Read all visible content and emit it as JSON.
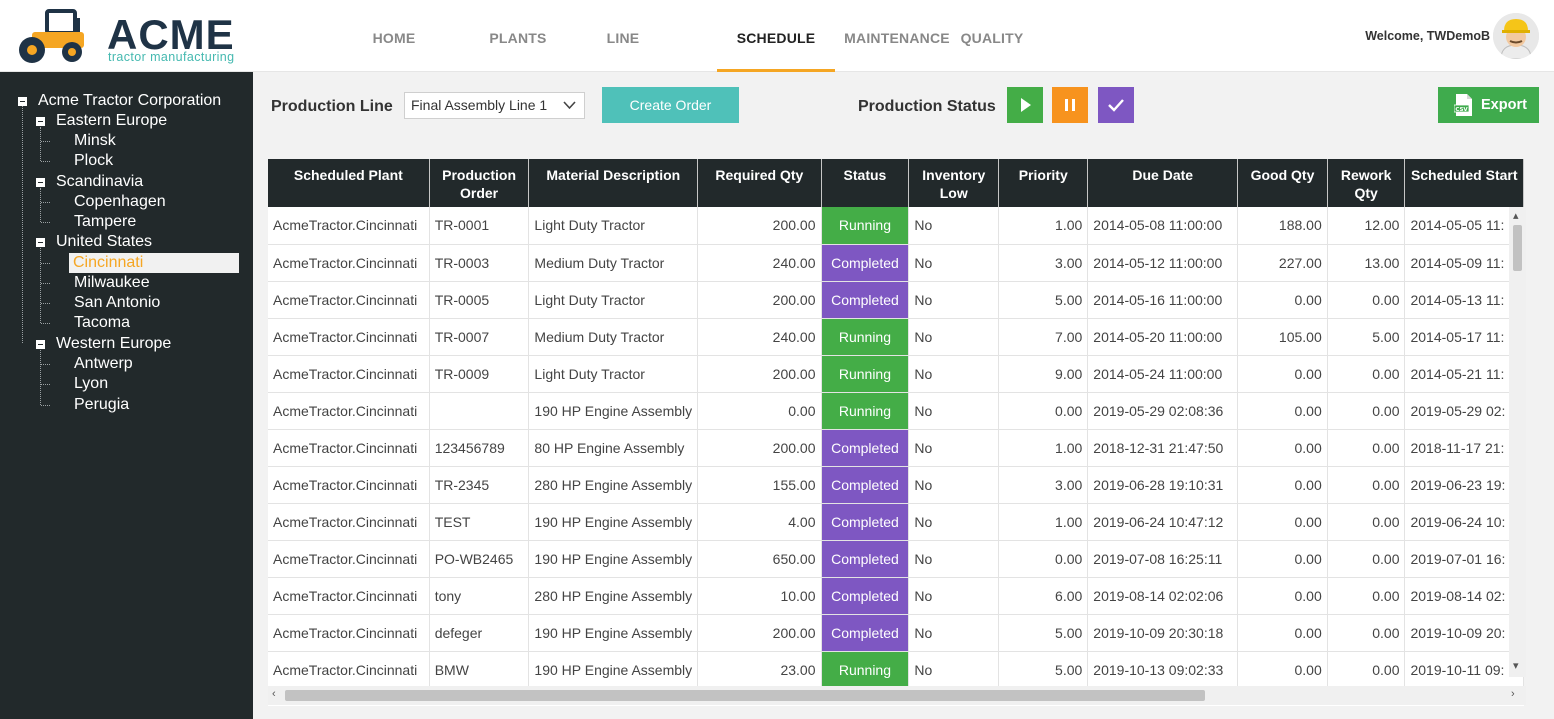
{
  "brand": {
    "name": "ACME",
    "subtitle": "tractor manufacturing",
    "accent": "#f5a623",
    "teal": "#45b9b0",
    "navy": "#1f3346"
  },
  "nav": {
    "items": [
      "HOME",
      "PLANTS",
      "LINE",
      "SCHEDULE",
      "MAINTENANCE",
      "QUALITY"
    ],
    "active": "SCHEDULE"
  },
  "user": {
    "welcome": "Welcome, TWDemoB"
  },
  "tree": {
    "root": "Acme Tractor Corporation",
    "regions": [
      {
        "name": "Eastern Europe",
        "plants": [
          "Minsk",
          "Plock"
        ]
      },
      {
        "name": "Scandinavia",
        "plants": [
          "Copenhagen",
          "Tampere"
        ]
      },
      {
        "name": "United States",
        "plants": [
          "Cincinnati",
          "Milwaukee",
          "San Antonio",
          "Tacoma"
        ]
      },
      {
        "name": "Western Europe",
        "plants": [
          "Antwerp",
          "Lyon",
          "Perugia"
        ]
      }
    ],
    "selected": "Cincinnati"
  },
  "toolbar": {
    "production_line_label": "Production Line",
    "production_line_value": "Final Assembly Line 1",
    "create_order_label": "Create Order",
    "production_status_label": "Production Status",
    "export_label": "Export",
    "status_colors": {
      "play": "#44ad47",
      "pause": "#f7931e",
      "done": "#7e57c2"
    }
  },
  "table": {
    "columns": [
      "Scheduled Plant",
      "Production Order",
      "Material Description",
      "Required Qty",
      "Status",
      "Inventory Low",
      "Priority",
      "Due Date",
      "Good Qty",
      "Rework Qty",
      "Scheduled Start"
    ],
    "rows": [
      [
        "AcmeTractor.Cincinnati",
        "TR-0001",
        "Light Duty Tractor",
        "200.00",
        "Running",
        "No",
        "1.00",
        "2014-05-08 11:00:00",
        "188.00",
        "12.00",
        "2014-05-05 11:"
      ],
      [
        "AcmeTractor.Cincinnati",
        "TR-0003",
        "Medium Duty Tractor",
        "240.00",
        "Completed",
        "No",
        "3.00",
        "2014-05-12 11:00:00",
        "227.00",
        "13.00",
        "2014-05-09 11:"
      ],
      [
        "AcmeTractor.Cincinnati",
        "TR-0005",
        "Light Duty Tractor",
        "200.00",
        "Completed",
        "No",
        "5.00",
        "2014-05-16 11:00:00",
        "0.00",
        "0.00",
        "2014-05-13 11:"
      ],
      [
        "AcmeTractor.Cincinnati",
        "TR-0007",
        "Medium Duty Tractor",
        "240.00",
        "Running",
        "No",
        "7.00",
        "2014-05-20 11:00:00",
        "105.00",
        "5.00",
        "2014-05-17 11:"
      ],
      [
        "AcmeTractor.Cincinnati",
        "TR-0009",
        "Light Duty Tractor",
        "200.00",
        "Running",
        "No",
        "9.00",
        "2014-05-24 11:00:00",
        "0.00",
        "0.00",
        "2014-05-21 11:"
      ],
      [
        "AcmeTractor.Cincinnati",
        "",
        "190 HP Engine Assembly",
        "0.00",
        "Running",
        "No",
        "0.00",
        "2019-05-29 02:08:36",
        "0.00",
        "0.00",
        "2019-05-29 02:"
      ],
      [
        "AcmeTractor.Cincinnati",
        "123456789",
        "80 HP Engine Assembly",
        "200.00",
        "Completed",
        "No",
        "1.00",
        "2018-12-31 21:47:50",
        "0.00",
        "0.00",
        "2018-11-17 21:"
      ],
      [
        "AcmeTractor.Cincinnati",
        "TR-2345",
        "280 HP Engine Assembly",
        "155.00",
        "Completed",
        "No",
        "3.00",
        "2019-06-28 19:10:31",
        "0.00",
        "0.00",
        "2019-06-23 19:"
      ],
      [
        "AcmeTractor.Cincinnati",
        "TEST",
        "190 HP Engine Assembly",
        "4.00",
        "Completed",
        "No",
        "1.00",
        "2019-06-24 10:47:12",
        "0.00",
        "0.00",
        "2019-06-24 10:"
      ],
      [
        "AcmeTractor.Cincinnati",
        "PO-WB2465",
        "190 HP Engine Assembly",
        "650.00",
        "Completed",
        "No",
        "0.00",
        "2019-07-08 16:25:11",
        "0.00",
        "0.00",
        "2019-07-01 16:"
      ],
      [
        "AcmeTractor.Cincinnati",
        "tony",
        "280 HP Engine Assembly",
        "10.00",
        "Completed",
        "No",
        "6.00",
        "2019-08-14 02:02:06",
        "0.00",
        "0.00",
        "2019-08-14 02:"
      ],
      [
        "AcmeTractor.Cincinnati",
        "defeger",
        "190 HP Engine Assembly",
        "200.00",
        "Completed",
        "No",
        "5.00",
        "2019-10-09 20:30:18",
        "0.00",
        "0.00",
        "2019-10-09 20:"
      ],
      [
        "AcmeTractor.Cincinnati",
        "BMW",
        "190 HP Engine Assembly",
        "23.00",
        "Running",
        "No",
        "5.00",
        "2019-10-13 09:02:33",
        "0.00",
        "0.00",
        "2019-10-11 09:"
      ]
    ]
  }
}
